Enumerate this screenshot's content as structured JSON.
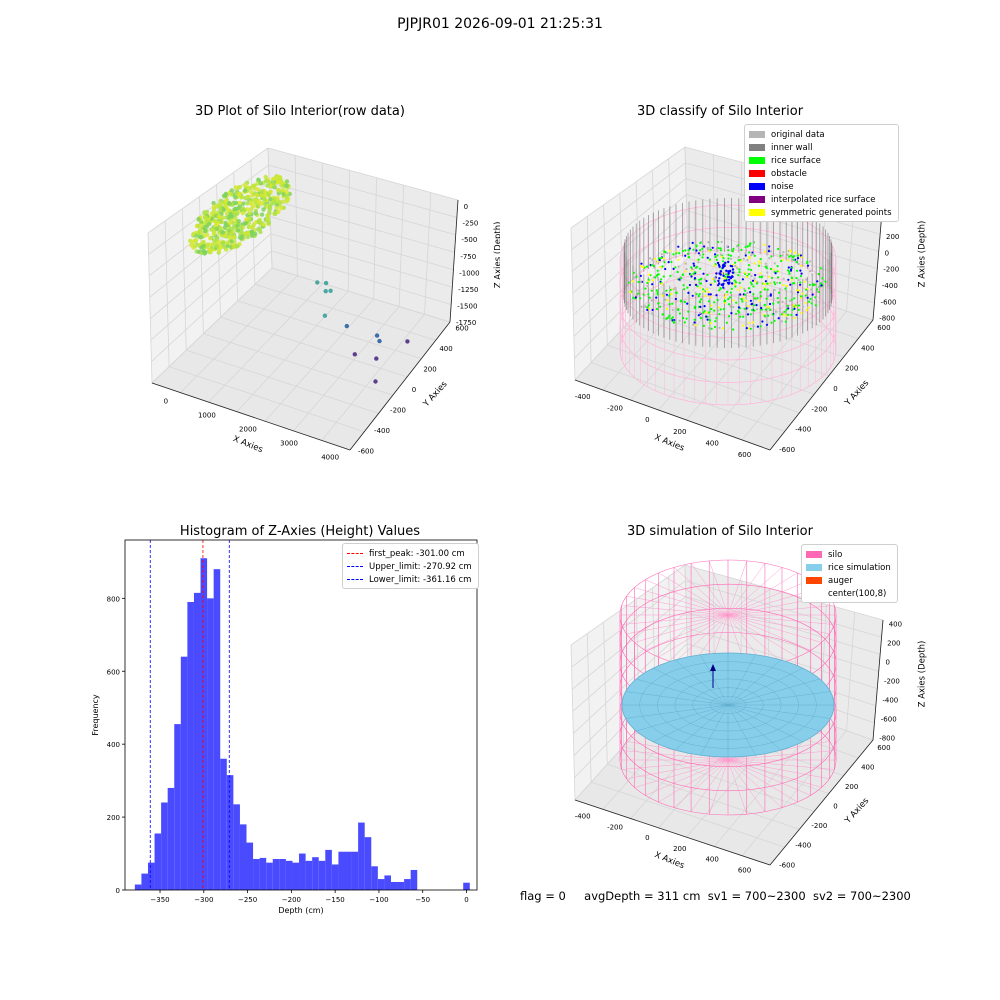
{
  "figure": {
    "suptitle": "PJPJR01 2026-09-01 21:25:31",
    "footer": {
      "flag": "flag = 0",
      "avg": "avgDepth = 311 cm",
      "sv1": "sv1 = 700~2300",
      "sv2": "sv2 = 700~2300"
    }
  },
  "chart_data": [
    {
      "type": "scatter",
      "title": "3D Plot of Silo Interior(row data)",
      "xlabel": "X Axies",
      "ylabel": "Y Axies",
      "zlabel": "Z Axies (Depth)",
      "xticks": [
        "0",
        "1000",
        "2000",
        "3000",
        "4000"
      ],
      "yticks": [
        "-600",
        "-400",
        "-200",
        "0",
        "200",
        "400",
        "600"
      ],
      "zticks": [
        "0",
        "-250",
        "-500",
        "-750",
        "-1000",
        "-1250",
        "-1500",
        "-1750"
      ],
      "xlim": [
        -500,
        4200
      ],
      "ylim": [
        -650,
        650
      ],
      "zlim": [
        -1900,
        100
      ],
      "outliers": [
        {
          "x": 2000,
          "y": 0,
          "z": -850
        },
        {
          "x": 2100,
          "y": 50,
          "z": -900
        },
        {
          "x": 2200,
          "y": 0,
          "z": -930
        },
        {
          "x": 2250,
          "y": 30,
          "z": -950
        },
        {
          "x": 2400,
          "y": -100,
          "z": -1100
        },
        {
          "x": 2700,
          "y": 0,
          "z": -1300
        },
        {
          "x": 3200,
          "y": 100,
          "z": -1450
        },
        {
          "x": 3300,
          "y": 80,
          "z": -1480
        },
        {
          "x": 3000,
          "y": -50,
          "z": -1560
        },
        {
          "x": 3400,
          "y": 0,
          "z": -1600
        },
        {
          "x": 3700,
          "y": 200,
          "z": -1550
        },
        {
          "x": 3600,
          "y": -100,
          "z": -1750
        }
      ]
    },
    {
      "type": "scatter",
      "title": "3D classify of Silo Interior",
      "xlabel": "X Axies",
      "ylabel": "Y Axies",
      "zlabel": "Z Axies (Depth)",
      "xticks": [
        "-400",
        "-200",
        "0",
        "200",
        "400",
        "600"
      ],
      "yticks": [
        "-600",
        "-400",
        "-200",
        "0",
        "200",
        "400",
        "600"
      ],
      "zticks": [
        "200",
        "0",
        "-200",
        "-400",
        "-600",
        "-800"
      ],
      "xlim": [
        -550,
        700
      ],
      "ylim": [
        -700,
        700
      ],
      "zlim": [
        -900,
        300
      ],
      "legend": [
        {
          "label": "original data",
          "color": "#b5b5b5"
        },
        {
          "label": "inner wall",
          "color": "#808080"
        },
        {
          "label": "rice surface",
          "color": "#00ff00"
        },
        {
          "label": "obstacle",
          "color": "#ff0000"
        },
        {
          "label": "noise",
          "color": "#0000ff"
        },
        {
          "label": "interpolated rice surface",
          "color": "#800080"
        },
        {
          "label": "symmetric generated points",
          "color": "#ffff00"
        }
      ]
    },
    {
      "type": "bar",
      "title": "Histogram of Z-Axies (Height) Values",
      "xlabel": "Depth (cm)",
      "ylabel": "Frequency",
      "xticks": [
        -350,
        -300,
        -250,
        -200,
        -150,
        -100,
        -50,
        0
      ],
      "yticks": [
        0,
        200,
        400,
        600,
        800
      ],
      "xlim": [
        -390,
        12
      ],
      "ylim": [
        0,
        960
      ],
      "bin_width": 7.5,
      "bins": [
        {
          "x": -375,
          "y": 15
        },
        {
          "x": -367.5,
          "y": 45
        },
        {
          "x": -360,
          "y": 75
        },
        {
          "x": -352.5,
          "y": 155
        },
        {
          "x": -345,
          "y": 240
        },
        {
          "x": -337.5,
          "y": 280
        },
        {
          "x": -330,
          "y": 455
        },
        {
          "x": -322.5,
          "y": 640
        },
        {
          "x": -315,
          "y": 790
        },
        {
          "x": -307.5,
          "y": 815
        },
        {
          "x": -300,
          "y": 910
        },
        {
          "x": -292.5,
          "y": 800
        },
        {
          "x": -285,
          "y": 880
        },
        {
          "x": -277.5,
          "y": 360
        },
        {
          "x": -270,
          "y": 315
        },
        {
          "x": -262.5,
          "y": 235
        },
        {
          "x": -255,
          "y": 180
        },
        {
          "x": -247.5,
          "y": 130
        },
        {
          "x": -240,
          "y": 85
        },
        {
          "x": -232.5,
          "y": 88
        },
        {
          "x": -225,
          "y": 75
        },
        {
          "x": -217.5,
          "y": 85
        },
        {
          "x": -210,
          "y": 85
        },
        {
          "x": -202.5,
          "y": 80
        },
        {
          "x": -195,
          "y": 75
        },
        {
          "x": -187.5,
          "y": 100
        },
        {
          "x": -180,
          "y": 80
        },
        {
          "x": -172.5,
          "y": 90
        },
        {
          "x": -165,
          "y": 80
        },
        {
          "x": -157.5,
          "y": 110
        },
        {
          "x": -150,
          "y": 70
        },
        {
          "x": -142.5,
          "y": 105
        },
        {
          "x": -135,
          "y": 105
        },
        {
          "x": -127.5,
          "y": 105
        },
        {
          "x": -120,
          "y": 185
        },
        {
          "x": -112.5,
          "y": 145
        },
        {
          "x": -105,
          "y": 65
        },
        {
          "x": -97.5,
          "y": 30
        },
        {
          "x": -90,
          "y": 40
        },
        {
          "x": -82.5,
          "y": 22
        },
        {
          "x": -75,
          "y": 22
        },
        {
          "x": -67.5,
          "y": 30
        },
        {
          "x": -60,
          "y": 55
        },
        {
          "x": 0,
          "y": 20
        }
      ],
      "lines": [
        {
          "x": -301.0,
          "color": "#ff0000",
          "label": "first_peak: -301.00 cm"
        },
        {
          "x": -270.92,
          "color": "#0000ff",
          "label": "Upper_limit: -270.92 cm"
        },
        {
          "x": -361.16,
          "color": "#0000ff",
          "label": "Lower_limit: -361.16 cm"
        }
      ],
      "bar_color": "#4a4aff"
    },
    {
      "type": "surface",
      "title": "3D simulation of Silo Interior",
      "xlabel": "X Axies",
      "ylabel": "Y Axies",
      "zlabel": "Z Axies (Depth)",
      "xticks": [
        "-400",
        "-200",
        "0",
        "200",
        "400",
        "600"
      ],
      "yticks": [
        "-600",
        "-400",
        "-200",
        "0",
        "200",
        "400",
        "600"
      ],
      "zticks": [
        "400",
        "200",
        "0",
        "-200",
        "-400",
        "-600",
        "-800"
      ],
      "xlim": [
        -550,
        700
      ],
      "ylim": [
        -700,
        700
      ],
      "zlim": [
        -900,
        450
      ],
      "legend": [
        {
          "label": "silo",
          "color": "#ff69b4"
        },
        {
          "label": "rice simulation",
          "color": "#87ceeb"
        },
        {
          "label": "auger",
          "color": "#ff4500"
        },
        {
          "label": "center(100,8)",
          "color": ""
        }
      ]
    }
  ]
}
